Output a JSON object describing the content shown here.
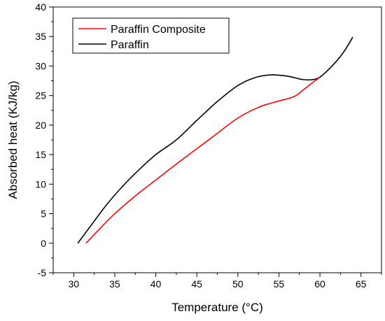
{
  "chart_data": {
    "type": "line",
    "title": "",
    "xlabel": "Temperature (°C)",
    "ylabel": "Absorbed heat (KJ/kg)",
    "xlim": [
      27.5,
      67.5
    ],
    "ylim": [
      -5,
      40
    ],
    "x_ticks": [
      30,
      35,
      40,
      45,
      50,
      55,
      60,
      65
    ],
    "y_ticks": [
      -5,
      0,
      5,
      10,
      15,
      20,
      25,
      30,
      35,
      40
    ],
    "grid": false,
    "legend_position": "top-left",
    "series": [
      {
        "name": "Paraffin Composite",
        "color": "#ff0000",
        "points": [
          [
            31.5,
            0
          ],
          [
            33,
            2.2
          ],
          [
            35,
            5
          ],
          [
            37.5,
            8
          ],
          [
            40,
            10.7
          ],
          [
            42.5,
            13.4
          ],
          [
            45,
            16
          ],
          [
            47.5,
            18.6
          ],
          [
            50,
            21.2
          ],
          [
            52.5,
            23
          ],
          [
            54.5,
            23.9
          ],
          [
            56.8,
            24.8
          ],
          [
            58,
            26
          ],
          [
            59.2,
            27.3
          ],
          [
            60,
            28.1
          ]
        ]
      },
      {
        "name": "Paraffin",
        "color": "#000000",
        "points": [
          [
            30.5,
            0
          ],
          [
            32,
            2.8
          ],
          [
            34,
            6.5
          ],
          [
            36,
            9.7
          ],
          [
            38,
            12.5
          ],
          [
            40,
            15
          ],
          [
            42.5,
            17.5
          ],
          [
            45,
            20.8
          ],
          [
            47.5,
            24
          ],
          [
            50,
            26.7
          ],
          [
            52,
            28
          ],
          [
            54,
            28.5
          ],
          [
            56,
            28.3
          ],
          [
            58,
            27.7
          ],
          [
            59.5,
            27.8
          ],
          [
            60.5,
            28.7
          ],
          [
            62,
            30.8
          ],
          [
            63,
            32.6
          ],
          [
            64,
            34.9
          ]
        ]
      }
    ]
  }
}
